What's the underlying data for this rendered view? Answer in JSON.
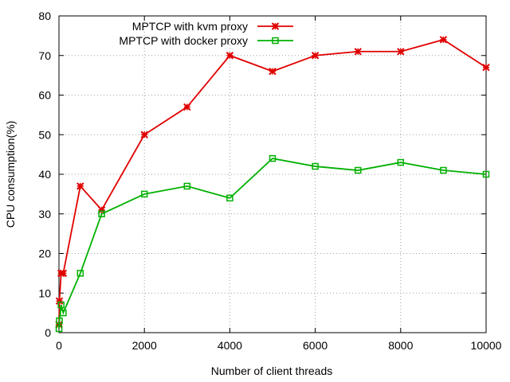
{
  "chart_data": {
    "type": "line",
    "title": "",
    "xlabel": "Number of client threads",
    "ylabel": "CPU consumption(%)",
    "xlim": [
      0,
      10000
    ],
    "ylim": [
      0,
      80
    ],
    "xticks": [
      0,
      2000,
      4000,
      6000,
      8000,
      10000
    ],
    "yticks": [
      0,
      10,
      20,
      30,
      40,
      50,
      60,
      70,
      80
    ],
    "grid": true,
    "legend_position": "top-right",
    "series": [
      {
        "name": "MPTCP with kvm proxy",
        "color": "#e00000",
        "marker": "x",
        "x": [
          1,
          10,
          50,
          100,
          500,
          1000,
          2000,
          3000,
          4000,
          5000,
          6000,
          7000,
          8000,
          9000,
          10000
        ],
        "y": [
          2,
          8,
          15,
          15,
          37,
          31,
          50,
          57,
          70,
          66,
          70,
          71,
          71,
          74,
          67
        ]
      },
      {
        "name": "MPTCP with docker proxy",
        "color": "#00b000",
        "marker": "square",
        "x": [
          1,
          10,
          50,
          100,
          500,
          1000,
          2000,
          3000,
          4000,
          5000,
          6000,
          7000,
          8000,
          9000,
          10000
        ],
        "y": [
          1,
          3,
          7,
          5,
          15,
          30,
          35,
          37,
          34,
          44,
          42,
          41,
          43,
          41,
          40
        ]
      }
    ]
  }
}
